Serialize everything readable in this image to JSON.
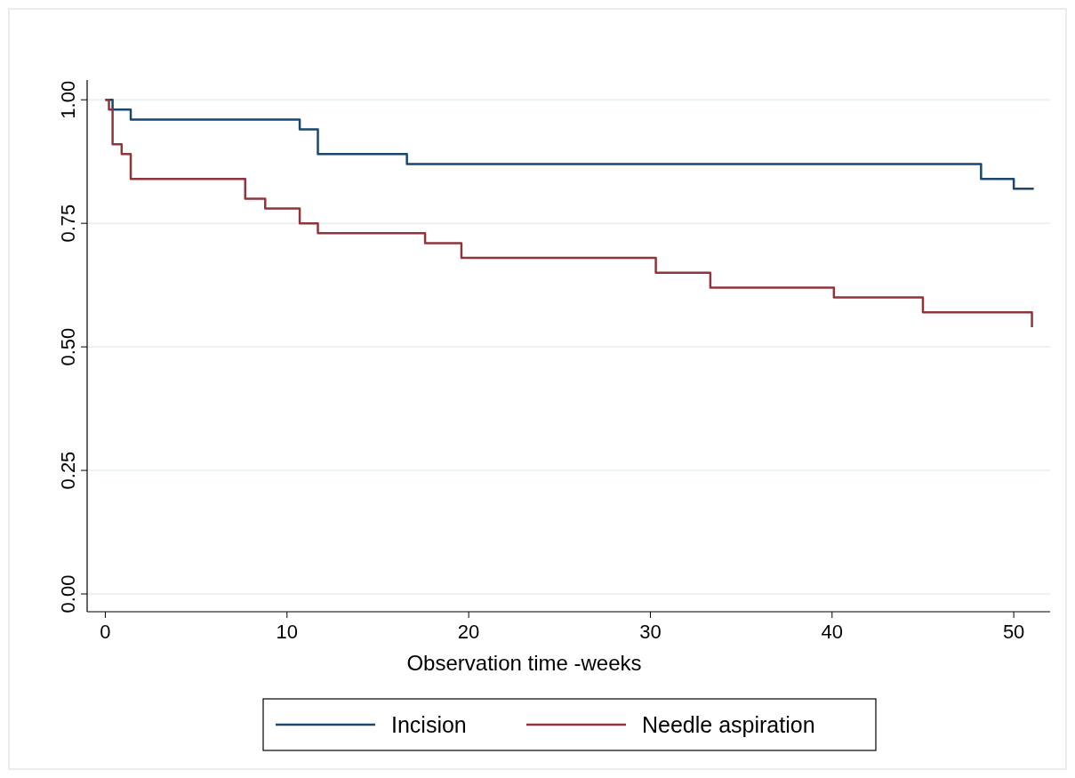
{
  "chart_data": {
    "type": "step",
    "xlabel": "Observation time -weeks",
    "xlim": [
      -1,
      52
    ],
    "xticks": [
      0,
      10,
      20,
      30,
      40,
      50
    ],
    "ylim": [
      -0.036,
      1.04
    ],
    "yticks": [
      {
        "value": 0,
        "label": "0.00"
      },
      {
        "value": 0.25,
        "label": "0.25"
      },
      {
        "value": 0.5,
        "label": "0.50"
      },
      {
        "value": 0.75,
        "label": "0.75"
      },
      {
        "value": 1,
        "label": "1.00"
      }
    ],
    "grid": "y",
    "legend": "bottom",
    "series": [
      {
        "name": "Incision",
        "color": "#1a476f",
        "x": [
          0,
          0.4,
          1.4,
          10.7,
          11.7,
          16.6,
          48.2,
          50,
          51.1
        ],
        "values": [
          1,
          0.98,
          0.96,
          0.94,
          0.89,
          0.87,
          0.84,
          0.82,
          0.82
        ]
      },
      {
        "name": "Needle aspiration",
        "color": "#90353b",
        "x": [
          0,
          0.2,
          0.4,
          0.9,
          1.4,
          7.7,
          8.8,
          10.7,
          11.7,
          17.6,
          19.6,
          30.3,
          33.3,
          40.1,
          45,
          51
        ],
        "values": [
          1,
          0.98,
          0.91,
          0.89,
          0.84,
          0.8,
          0.78,
          0.75,
          0.73,
          0.71,
          0.68,
          0.65,
          0.62,
          0.6,
          0.57,
          0.54
        ]
      }
    ]
  }
}
